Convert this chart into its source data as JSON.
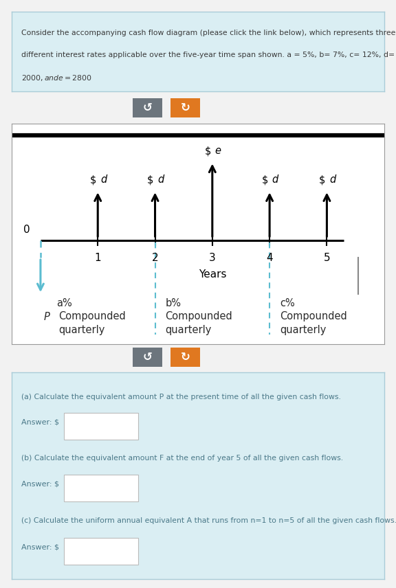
{
  "title_text_line1": "Consider the accompanying cash flow diagram (please click the link below), which represents three",
  "title_text_line2": "different interest rates applicable over the five-year time span shown. a = 5%, b= 7%, c= 12%, d=",
  "title_text_line3": "$2000, and e= $2800",
  "title_bg": "#daeef3",
  "title_border": "#aaccd8",
  "diagram_bg": "#ffffff",
  "diagram_border": "#999999",
  "outer_bg": "#f2f2f2",
  "cash_flow_years": [
    1,
    2,
    3,
    4,
    5
  ],
  "cash_flow_labels": [
    "$d",
    "$d",
    "$e",
    "$d",
    "$d"
  ],
  "tall_index": 2,
  "dashed_line_x": [
    2,
    4
  ],
  "dashed_line_color": "#5bbcd0",
  "P_arrow_color": "#5bbcd0",
  "years_label": "Years",
  "button1_color": "#6c757d",
  "button2_color": "#e07820",
  "qa_bg": "#daeef3",
  "qa_border": "#aaccd8",
  "questions": [
    "(a) Calculate the equivalent amount P at the present time of all the given cash flows.",
    "(b) Calculate the equivalent amount F at the end of year 5 of all the given cash flows.",
    "(c) Calculate the uniform annual equivalent A that runs from n=1 to n=5 of all the given cash flows."
  ],
  "answer_label": "Answer: $"
}
